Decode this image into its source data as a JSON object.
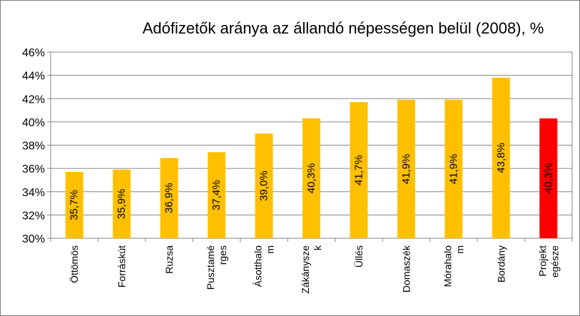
{
  "chart_data": {
    "type": "bar",
    "title": "Adófizetők aránya az állandó népességen belül (2008), %",
    "xlabel": "",
    "ylabel": "",
    "ylim": [
      30,
      46
    ],
    "ytick_step": 2,
    "y_tick_labels": [
      "30%",
      "32%",
      "34%",
      "36%",
      "38%",
      "40%",
      "42%",
      "44%",
      "46%"
    ],
    "grid": true,
    "legend": "none",
    "categories": [
      [
        "Öttömös"
      ],
      [
        "Forráskút"
      ],
      [
        "Ruzsa"
      ],
      [
        "Pusztamé",
        "rges"
      ],
      [
        "Ásotthalo",
        "m"
      ],
      [
        "Zákánysze",
        "k"
      ],
      [
        "Üllés"
      ],
      [
        "Domaszék"
      ],
      [
        "Mórahalo",
        "m"
      ],
      [
        "Bordány"
      ],
      [
        "Projekt",
        "egésze"
      ]
    ],
    "values": [
      35.7,
      35.9,
      36.9,
      37.4,
      39.0,
      40.3,
      41.7,
      41.9,
      41.9,
      43.8,
      40.3
    ],
    "value_labels": [
      "35,7%",
      "35,9%",
      "36,9%",
      "37,4%",
      "39,0%",
      "40,3%",
      "41,7%",
      "41,9%",
      "41,9%",
      "43,8%",
      "40,3%"
    ],
    "colors": [
      "#FFC000",
      "#FFC000",
      "#FFC000",
      "#FFC000",
      "#FFC000",
      "#FFC000",
      "#FFC000",
      "#FFC000",
      "#FFC000",
      "#FFC000",
      "#FF0000"
    ]
  }
}
